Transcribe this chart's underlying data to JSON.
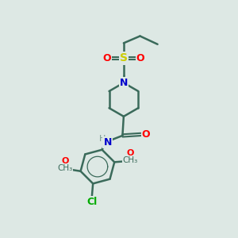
{
  "background_color": "#dde8e4",
  "bond_color": "#3a6a5a",
  "atom_colors": {
    "S": "#cccc00",
    "O": "#ff0000",
    "N": "#0000cc",
    "Cl": "#00aa00",
    "C": "#3a6a5a",
    "H": "#7a9a90"
  },
  "figsize": [
    3.0,
    3.0
  ],
  "dpi": 100
}
